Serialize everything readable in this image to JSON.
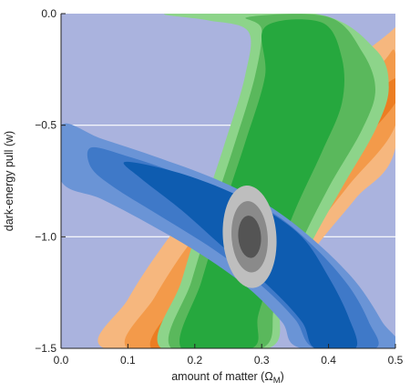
{
  "chart_data": {
    "type": "contour",
    "xlabel": "amount of matter (Ω",
    "xlabel_sub": "M",
    "xlabel_close": ")",
    "ylabel": "dark-energy pull (w)",
    "xlim": [
      0.0,
      0.5
    ],
    "ylim": [
      -1.5,
      0.0
    ],
    "x_ticks": [
      0.0,
      0.1,
      0.2,
      0.3,
      0.4,
      0.5
    ],
    "y_ticks": [
      0.0,
      -0.5,
      -1.0,
      -1.5
    ],
    "x_tick_labels": [
      "0.0",
      "0.1",
      "0.2",
      "0.3",
      "0.4",
      "0.5"
    ],
    "y_tick_labels": [
      "0.0",
      "−0.5",
      "−1.0",
      "−1.5"
    ],
    "grid": true,
    "colors": {
      "background": "#aab3de",
      "grid": "#ffffff",
      "orange_outer": "#f6b77e",
      "orange_mid": "#f39a4a",
      "orange_inner": "#ec7d22",
      "green_outer": "#8dd48a",
      "green_mid": "#5ab85c",
      "green_inner": "#26a83e",
      "blue_outer": "#6a94d6",
      "blue_mid": "#3f79c8",
      "blue_inner": "#0e5cb0",
      "gray_outer": "#bebebe",
      "gray_mid": "#8a8a8a",
      "gray_inner": "#545454"
    },
    "series": [
      {
        "color_key": "orange",
        "levels": [
          [
            [
              0.065,
              -1.5
            ],
            [
              0.1,
              -1.28
            ],
            [
              0.15,
              -1.05
            ],
            [
              0.21,
              -0.82
            ],
            [
              0.28,
              -0.62
            ],
            [
              0.36,
              -0.42
            ],
            [
              0.43,
              -0.23
            ],
            [
              0.5,
              -0.06
            ],
            [
              0.5,
              0.0
            ],
            [
              0.5,
              -0.6
            ],
            [
              0.44,
              -0.83
            ],
            [
              0.38,
              -1.05
            ],
            [
              0.33,
              -1.28
            ],
            [
              0.29,
              -1.5
            ]
          ],
          [
            [
              0.1,
              -1.5
            ],
            [
              0.14,
              -1.27
            ],
            [
              0.19,
              -1.04
            ],
            [
              0.25,
              -0.83
            ],
            [
              0.33,
              -0.62
            ],
            [
              0.41,
              -0.42
            ],
            [
              0.48,
              -0.22
            ],
            [
              0.5,
              -0.18
            ],
            [
              0.5,
              -0.5
            ],
            [
              0.43,
              -0.77
            ],
            [
              0.37,
              -1.0
            ],
            [
              0.31,
              -1.25
            ],
            [
              0.26,
              -1.5
            ]
          ],
          [
            [
              0.135,
              -1.5
            ],
            [
              0.18,
              -1.26
            ],
            [
              0.23,
              -1.05
            ],
            [
              0.3,
              -0.84
            ],
            [
              0.37,
              -0.63
            ],
            [
              0.44,
              -0.44
            ],
            [
              0.5,
              -0.29
            ],
            [
              0.5,
              -0.4
            ],
            [
              0.42,
              -0.68
            ],
            [
              0.36,
              -0.95
            ],
            [
              0.3,
              -1.22
            ],
            [
              0.245,
              -1.5
            ]
          ]
        ]
      },
      {
        "color_key": "green",
        "levels": [
          [
            [
              0.15,
              -1.5
            ],
            [
              0.18,
              -1.2
            ],
            [
              0.21,
              -0.9
            ],
            [
              0.245,
              -0.58
            ],
            [
              0.275,
              -0.28
            ],
            [
              0.28,
              -0.08
            ],
            [
              0.22,
              -0.03
            ],
            [
              0.16,
              0.0
            ],
            [
              0.38,
              0.0
            ],
            [
              0.47,
              -0.16
            ],
            [
              0.49,
              -0.33
            ],
            [
              0.47,
              -0.52
            ],
            [
              0.42,
              -0.78
            ],
            [
              0.37,
              -1.05
            ],
            [
              0.33,
              -1.3
            ],
            [
              0.31,
              -1.5
            ]
          ],
          [
            [
              0.165,
              -1.5
            ],
            [
              0.195,
              -1.2
            ],
            [
              0.225,
              -0.9
            ],
            [
              0.26,
              -0.58
            ],
            [
              0.29,
              -0.28
            ],
            [
              0.3,
              -0.07
            ],
            [
              0.28,
              -0.015
            ],
            [
              0.4,
              -0.015
            ],
            [
              0.45,
              -0.17
            ],
            [
              0.47,
              -0.34
            ],
            [
              0.45,
              -0.52
            ],
            [
              0.4,
              -0.78
            ],
            [
              0.355,
              -1.05
            ],
            [
              0.32,
              -1.3
            ],
            [
              0.3,
              -1.5
            ]
          ],
          [
            [
              0.18,
              -1.5
            ],
            [
              0.21,
              -1.2
            ],
            [
              0.24,
              -0.9
            ],
            [
              0.275,
              -0.58
            ],
            [
              0.305,
              -0.28
            ],
            [
              0.305,
              -0.06
            ],
            [
              0.39,
              -0.04
            ],
            [
              0.42,
              -0.2
            ],
            [
              0.42,
              -0.4
            ],
            [
              0.39,
              -0.62
            ],
            [
              0.35,
              -0.88
            ],
            [
              0.32,
              -1.12
            ],
            [
              0.295,
              -1.35
            ],
            [
              0.285,
              -1.5
            ]
          ]
        ]
      },
      {
        "color_key": "blue",
        "levels": [
          [
            [
              0.0,
              -0.5
            ],
            [
              0.06,
              -0.56
            ],
            [
              0.14,
              -0.64
            ],
            [
              0.23,
              -0.74
            ],
            [
              0.31,
              -0.86
            ],
            [
              0.38,
              -1.02
            ],
            [
              0.44,
              -1.2
            ],
            [
              0.48,
              -1.38
            ],
            [
              0.5,
              -1.5
            ],
            [
              0.36,
              -1.5
            ],
            [
              0.33,
              -1.38
            ],
            [
              0.28,
              -1.23
            ],
            [
              0.21,
              -1.08
            ],
            [
              0.13,
              -0.94
            ],
            [
              0.06,
              -0.83
            ],
            [
              0.0,
              -0.75
            ]
          ],
          [
            [
              0.045,
              -0.6
            ],
            [
              0.1,
              -0.64
            ],
            [
              0.17,
              -0.71
            ],
            [
              0.25,
              -0.8
            ],
            [
              0.32,
              -0.9
            ],
            [
              0.38,
              -1.05
            ],
            [
              0.43,
              -1.22
            ],
            [
              0.46,
              -1.38
            ],
            [
              0.47,
              -1.5
            ],
            [
              0.38,
              -1.5
            ],
            [
              0.35,
              -1.37
            ],
            [
              0.3,
              -1.22
            ],
            [
              0.23,
              -1.06
            ],
            [
              0.15,
              -0.91
            ],
            [
              0.08,
              -0.78
            ],
            [
              0.045,
              -0.69
            ]
          ],
          [
            [
              0.095,
              -0.665
            ],
            [
              0.16,
              -0.7
            ],
            [
              0.23,
              -0.77
            ],
            [
              0.3,
              -0.87
            ],
            [
              0.36,
              -1.0
            ],
            [
              0.4,
              -1.18
            ],
            [
              0.43,
              -1.36
            ],
            [
              0.44,
              -1.5
            ],
            [
              0.38,
              -1.5
            ],
            [
              0.36,
              -1.38
            ],
            [
              0.31,
              -1.22
            ],
            [
              0.24,
              -1.04
            ],
            [
              0.18,
              -0.88
            ],
            [
              0.12,
              -0.74
            ]
          ]
        ]
      },
      {
        "color_key": "gray",
        "ellipses": [
          {
            "cx": 0.282,
            "cy": -1.0,
            "rx": 0.04,
            "ry": 0.23,
            "angle": -4
          },
          {
            "cx": 0.282,
            "cy": -1.0,
            "rx": 0.027,
            "ry": 0.16,
            "angle": -4
          },
          {
            "cx": 0.282,
            "cy": -1.0,
            "rx": 0.017,
            "ry": 0.095,
            "angle": -4
          }
        ]
      }
    ]
  }
}
